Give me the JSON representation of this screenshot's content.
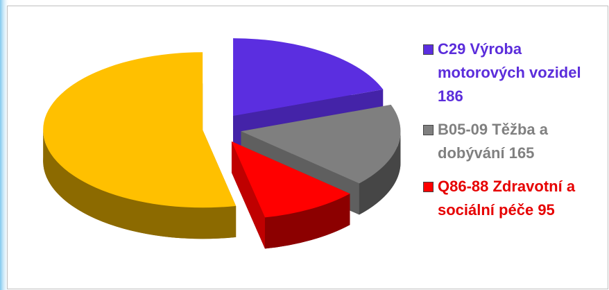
{
  "chart_data": {
    "type": "pie",
    "categories": [
      "C29 Výroba motorových vozidel",
      "B05-09 Těžba a dobývání",
      "Q86-88 Zdravotní a sociální péče",
      null
    ],
    "values": [
      186,
      165,
      95,
      510
    ],
    "colors": [
      "#5b2ee0",
      "#7f7f7f",
      "#ff0000",
      "#ffc000"
    ],
    "legend_text_colors": [
      "#5b2ddb",
      "#808080",
      "#e60000",
      null
    ],
    "start_angle": -90,
    "exploded": true
  }
}
